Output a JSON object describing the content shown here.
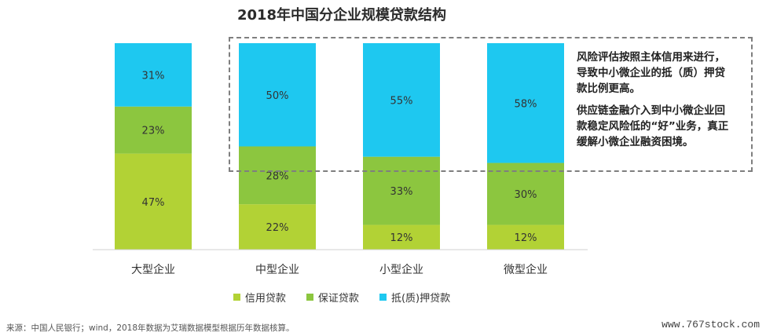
{
  "chart_data": {
    "type": "bar",
    "stacked": true,
    "title": "2018年中国分企业规模贷款结构",
    "categories": [
      "大型企业",
      "中型企业",
      "小型企业",
      "微型企业"
    ],
    "series": [
      {
        "name": "信用贷款",
        "values": [
          47,
          22,
          12,
          12
        ],
        "labels": [
          "47%",
          "22%",
          "12%",
          "12%"
        ],
        "color": "#b2d235"
      },
      {
        "name": "保证贷款",
        "values": [
          23,
          28,
          33,
          30
        ],
        "labels": [
          "23%",
          "28%",
          "33%",
          "30%"
        ],
        "color": "#8cc63f"
      },
      {
        "name": "抵(质)押贷款",
        "values": [
          31,
          50,
          55,
          58
        ],
        "labels": [
          "31%",
          "50%",
          "55%",
          "58%"
        ],
        "color": "#1ec8f0"
      }
    ],
    "legend_position": "bottom",
    "grid": false
  },
  "callout": {
    "paragraphs": [
      "风险评估按照主体信用来进行，导致中小微企业的抵（质）押贷款比例更高。",
      "供应链金融介入到中小微企业回款稳定风险低的“好”业务，真正缓解小微企业融资困境。"
    ]
  },
  "footer": {
    "source": "来源：中国人民银行；wind，2018年数据为艾瑞数据模型根据历年数据核算。",
    "watermark": "www.767stock.com"
  }
}
